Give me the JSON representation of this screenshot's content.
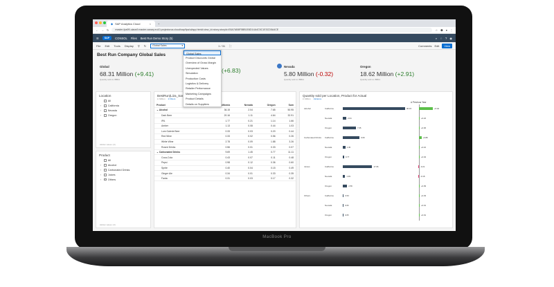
{
  "laptop": {
    "brand": "MacBook Pro"
  },
  "browser": {
    "tab_title": "SAP Analytics Cloud",
    "url": "master-fpa99-uiaos9.master.canary.eu10.projectorca.cloud/sap/fpa/ui/app.html#;view_id=story;storyId=E8A7AB8F5BB1E8D14A4C5C1E3CD5A4CE"
  },
  "shell": {
    "logo": "SAP",
    "product": "CONSOL",
    "section": "Files",
    "breadcrumb": "Best Run Demo Story (5)"
  },
  "toolbar": {
    "file": "File",
    "edit": "Edit",
    "tools": "Tools",
    "display": "Display",
    "page_select": "Global Sales",
    "page_nav": "1 / 31",
    "comments": "Comments",
    "edit_btn": "Edit",
    "view_btn": "View"
  },
  "dropdown": [
    "Global Sales",
    "Product Discounts Global",
    "Overview of Gross Margin",
    "Unexpected Values",
    "Simulation",
    "Production Costs",
    "Logistics & Delivery",
    "Retailer Performance",
    "Marketing Campaigns",
    "Product Details",
    "Details on Suppliers"
  ],
  "story_title": "Best Run Company Global Sales",
  "kpis": [
    {
      "label": "Global",
      "value": "68.31 Million",
      "delta": "(+9.41)",
      "sign": "pos",
      "sub": "Quantity sold vs. BBDA"
    },
    {
      "label": "",
      "value": "",
      "delta": "(+6.83)",
      "sign": "pos",
      "sub": ""
    },
    {
      "label": "Nevada",
      "value": "5.80 Million",
      "delta": "(-0.32)",
      "sign": "neg",
      "sub": "Quantity sold vs. BBDA"
    },
    {
      "label": "Oregon",
      "value": "18.62 Million",
      "delta": "(+2.91)",
      "sign": "pos",
      "sub": "Quantity sold vs. BBDA"
    }
  ],
  "location_filter": {
    "title": "Location",
    "items": [
      {
        "label": "All",
        "chev": ""
      },
      {
        "label": "California",
        "chev": "›"
      },
      {
        "label": "Nevada",
        "chev": "›"
      },
      {
        "label": "Oregon",
        "chev": "›"
      }
    ],
    "footer": "Hidden values: (0)"
  },
  "product_filter": {
    "title": "Product",
    "items": [
      {
        "label": "All",
        "chev": ""
      },
      {
        "label": "Alcohol",
        "chev": "›"
      },
      {
        "label": "Carbonated Drinks",
        "chev": "›"
      },
      {
        "label": "Juices",
        "chev": "›"
      },
      {
        "label": "Others",
        "chev": "›"
      }
    ],
    "footer": "Hidden values: (0)"
  },
  "table": {
    "title": "BestRun(Liza_Sample)",
    "subtitle": "in Million",
    "filter": "2 Filters",
    "columns": [
      "Product",
      "California",
      "Nevada",
      "Oregon",
      "Sum"
    ],
    "rows": [
      [
        "⌄ Alcohol",
        "36.15",
        "2.04",
        "7.65",
        "50.95"
      ],
      [
        "Dark Beer",
        "20.16",
        "1.11",
        "4.64",
        "32.91"
      ],
      [
        "IPA",
        "1.77",
        "0.21",
        "1.14",
        "1.66"
      ],
      [
        "Amber",
        "1.13",
        "0.08",
        "0.44",
        "1.03"
      ],
      [
        "Lum Galerie Beer",
        "0.33",
        "0.03",
        "0.20",
        "0.44"
      ],
      [
        "Red Wine",
        "0.33",
        "0.02",
        "0.56",
        "0.26"
      ],
      [
        "White Wine",
        "2.78",
        "0.09",
        "1.88",
        "3.26"
      ],
      [
        "Rosed Drinks",
        "0.56",
        "0.01",
        "0.33",
        "0.07"
      ],
      [
        "⌄ Carbonated Drinks",
        "9.69",
        "1.45",
        "0.77",
        "11.11"
      ],
      [
        "Coca-Cola",
        "0.43",
        "0.07",
        "0.11",
        "0.48"
      ],
      [
        "Pepsi",
        "0.98",
        "0.12",
        "0.36",
        "0.60"
      ],
      [
        "Sprite",
        "0.40",
        "0.04",
        "0.15",
        "0.49"
      ],
      [
        "Ginger Ale",
        "0.34",
        "0.01",
        "0.33",
        "0.35"
      ],
      [
        "Fanta",
        "0.31",
        "0.03",
        "0.17",
        "0.32"
      ]
    ]
  },
  "chart_data": {
    "type": "bar",
    "title": "Quantity sold per Location, Product for Actual",
    "subtitle": "in Million",
    "legend": "Variance",
    "variance_header": "Δ Previous Year",
    "rows": [
      {
        "group": "Alcohol",
        "location": "California",
        "value": 36.15,
        "variance": 5.02
      },
      {
        "group": "",
        "location": "Nevada",
        "value": 2.04,
        "variance": 0.22
      },
      {
        "group": "",
        "location": "Oregon",
        "value": 7.65,
        "variance": 0.06
      },
      {
        "group": "Carbonated Drinks",
        "location": "California",
        "value": 9.69,
        "variance": 0.88
      },
      {
        "group": "",
        "location": "Nevada",
        "value": 1.45,
        "variance": 0.16
      },
      {
        "group": "",
        "location": "Oregon",
        "value": 0.77,
        "variance": 0.04
      },
      {
        "group": "Juices",
        "location": "California",
        "value": 17.06,
        "variance": -0.21
      },
      {
        "group": "",
        "location": "Nevada",
        "value": 1.39,
        "variance": -0.18
      },
      {
        "group": "",
        "location": "Oregon",
        "value": 2.56,
        "variance": 0.09
      },
      {
        "group": "Others",
        "location": "California",
        "value": 0.53,
        "variance": 0.03
      },
      {
        "group": "",
        "location": "Nevada",
        "value": 0.06,
        "variance": 0.01
      },
      {
        "group": "",
        "location": "Oregon",
        "value": 0.05,
        "variance": 0.01
      }
    ],
    "value_labels": [
      "36.15",
      "2.04",
      "7.65",
      "9.69",
      "1.45",
      "0.77",
      "17.06",
      "1.39",
      "2.56",
      "0.53",
      "0.06",
      "0.05"
    ],
    "variance_labels": [
      "+5.02",
      "+0.22",
      "+0.06",
      "+0.88",
      "+0.16",
      "+0.04",
      "-0.21",
      "-0.18",
      "+0.09",
      "+0.03",
      "+0.01",
      "+0.01"
    ]
  }
}
